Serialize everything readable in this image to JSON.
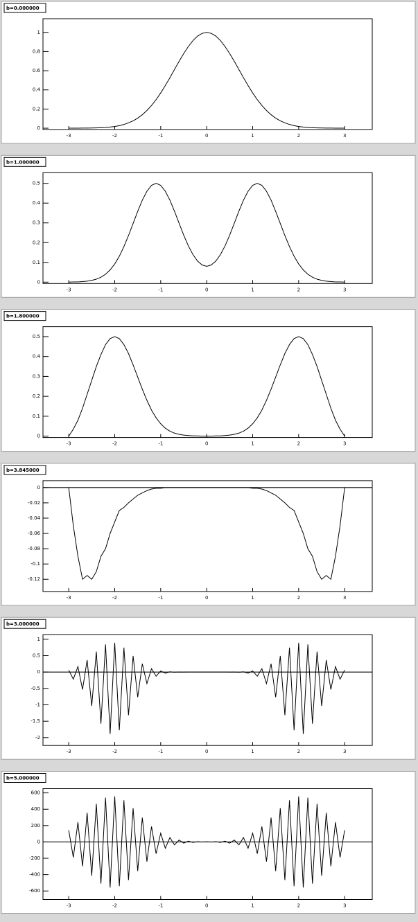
{
  "chart_data": [
    {
      "type": "line",
      "title": "b=0.000000",
      "color": "#000000",
      "zero_line": false,
      "xlim": [
        -3.56,
        3.6
      ],
      "xticks": [
        -3,
        -2,
        -1,
        0,
        1,
        2,
        3
      ],
      "ylim": [
        -0.014,
        1.143
      ],
      "yticks": [
        0,
        0.2,
        0.4,
        0.6,
        0.8,
        1
      ],
      "x": [
        -3,
        -2.9,
        -2.8,
        -2.7,
        -2.6,
        -2.5,
        -2.4,
        -2.3,
        -2.2,
        -2.1,
        -2,
        -1.9,
        -1.8,
        -1.7,
        -1.6,
        -1.5,
        -1.4,
        -1.3,
        -1.2,
        -1.1,
        -1,
        -0.9,
        -0.8,
        -0.7,
        -0.6,
        -0.5,
        -0.4,
        -0.3,
        -0.2,
        -0.1,
        0,
        0.1,
        0.2,
        0.3,
        0.4,
        0.5,
        0.6,
        0.7,
        0.8,
        0.9,
        1,
        1.1,
        1.2,
        1.3,
        1.4,
        1.5,
        1.6,
        1.7,
        1.8,
        1.9,
        2,
        2.1,
        2.2,
        2.3,
        2.4,
        2.5,
        2.6,
        2.7,
        2.8,
        2.9,
        3
      ],
      "values": [
        0,
        0,
        0,
        0.001,
        0.001,
        0.002,
        0.003,
        0.005,
        0.008,
        0.012,
        0.018,
        0.027,
        0.039,
        0.056,
        0.077,
        0.105,
        0.141,
        0.185,
        0.237,
        0.298,
        0.368,
        0.445,
        0.527,
        0.613,
        0.698,
        0.779,
        0.852,
        0.914,
        0.961,
        0.99,
        1,
        0.99,
        0.961,
        0.914,
        0.852,
        0.779,
        0.698,
        0.613,
        0.527,
        0.445,
        0.368,
        0.298,
        0.237,
        0.185,
        0.141,
        0.105,
        0.077,
        0.056,
        0.039,
        0.027,
        0.018,
        0.012,
        0.008,
        0.005,
        0.003,
        0.002,
        0.001,
        0.001,
        0,
        0,
        0
      ]
    },
    {
      "type": "line",
      "title": "b=1.000000",
      "color": "#000000",
      "zero_line": false,
      "xlim": [
        -3.56,
        3.6
      ],
      "xticks": [
        -3,
        -2,
        -1,
        0,
        1,
        2,
        3
      ],
      "ylim": [
        -0.007,
        0.554
      ],
      "yticks": [
        0,
        0.1,
        0.2,
        0.3,
        0.4,
        0.5
      ],
      "x": [
        -3,
        -2.9,
        -2.8,
        -2.7,
        -2.6,
        -2.5,
        -2.4,
        -2.3,
        -2.2,
        -2.1,
        -2,
        -1.9,
        -1.8,
        -1.7,
        -1.6,
        -1.5,
        -1.4,
        -1.3,
        -1.2,
        -1.1,
        -1,
        -0.9,
        -0.8,
        -0.7,
        -0.6,
        -0.5,
        -0.4,
        -0.3,
        -0.2,
        -0.1,
        0,
        0.1,
        0.2,
        0.3,
        0.4,
        0.5,
        0.6,
        0.7,
        0.8,
        0.9,
        1,
        1.1,
        1.2,
        1.3,
        1.4,
        1.5,
        1.6,
        1.7,
        1.8,
        1.9,
        2,
        2.1,
        2.2,
        2.3,
        2.4,
        2.5,
        2.6,
        2.7,
        2.8,
        2.9,
        3
      ],
      "values": [
        0,
        0.001,
        0.001,
        0.003,
        0.005,
        0.009,
        0.015,
        0.025,
        0.04,
        0.062,
        0.092,
        0.131,
        0.18,
        0.236,
        0.297,
        0.358,
        0.415,
        0.46,
        0.49,
        0.5,
        0.49,
        0.46,
        0.415,
        0.359,
        0.298,
        0.238,
        0.184,
        0.14,
        0.107,
        0.087,
        0.08,
        0.087,
        0.107,
        0.14,
        0.184,
        0.238,
        0.298,
        0.359,
        0.415,
        0.46,
        0.49,
        0.5,
        0.49,
        0.46,
        0.415,
        0.358,
        0.297,
        0.236,
        0.18,
        0.131,
        0.092,
        0.062,
        0.04,
        0.025,
        0.015,
        0.009,
        0.005,
        0.003,
        0.001,
        0.001,
        0
      ]
    },
    {
      "type": "line",
      "title": "b=1.800000",
      "color": "#000000",
      "zero_line": false,
      "xlim": [
        -3.56,
        3.6
      ],
      "xticks": [
        -3,
        -2,
        -1,
        0,
        1,
        2,
        3
      ],
      "ylim": [
        -0.007,
        0.55
      ],
      "yticks": [
        0,
        0.1,
        0.2,
        0.3,
        0.4,
        0.5
      ],
      "x": [
        -3,
        -2.9,
        -2.8,
        -2.7,
        -2.6,
        -2.5,
        -2.4,
        -2.3,
        -2.2,
        -2.1,
        -2,
        -1.9,
        -1.8,
        -1.7,
        -1.6,
        -1.5,
        -1.4,
        -1.3,
        -1.2,
        -1.1,
        -1,
        -0.9,
        -0.8,
        -0.7,
        -0.6,
        -0.5,
        -0.4,
        -0.3,
        -0.2,
        -0.1,
        0,
        0.1,
        0.2,
        0.3,
        0.4,
        0.5,
        0.6,
        0.7,
        0.8,
        0.9,
        1,
        1.1,
        1.2,
        1.3,
        1.4,
        1.5,
        1.6,
        1.7,
        1.8,
        1.9,
        2,
        2.1,
        2.2,
        2.3,
        2.4,
        2.5,
        2.6,
        2.7,
        2.8,
        2.9,
        3
      ],
      "values": [
        0,
        0.035,
        0.08,
        0.14,
        0.21,
        0.28,
        0.35,
        0.41,
        0.46,
        0.49,
        0.5,
        0.49,
        0.46,
        0.415,
        0.358,
        0.297,
        0.236,
        0.18,
        0.131,
        0.092,
        0.062,
        0.04,
        0.025,
        0.015,
        0.009,
        0.005,
        0.003,
        0.001,
        0.001,
        0,
        0,
        0,
        0.001,
        0.001,
        0.003,
        0.005,
        0.009,
        0.015,
        0.025,
        0.04,
        0.062,
        0.092,
        0.131,
        0.18,
        0.236,
        0.297,
        0.358,
        0.415,
        0.46,
        0.49,
        0.5,
        0.49,
        0.46,
        0.41,
        0.35,
        0.28,
        0.21,
        0.14,
        0.08,
        0.035,
        0
      ]
    },
    {
      "type": "line",
      "title": "b=3.845000",
      "color": "#000000",
      "zero_line": true,
      "xlim": [
        -3.56,
        3.6
      ],
      "xticks": [
        -3,
        -2,
        -1,
        0,
        1,
        2,
        3
      ],
      "ylim": [
        -0.136,
        0.009
      ],
      "yticks": [
        -0.12,
        -0.1,
        -0.08,
        -0.06,
        -0.04,
        -0.02,
        0
      ],
      "x": [
        -3,
        -2.9,
        -2.8,
        -2.7,
        -2.6,
        -2.5,
        -2.4,
        -2.3,
        -2.2,
        -2.1,
        -2,
        -1.9,
        -1.8,
        -1.7,
        -1.6,
        -1.5,
        -1.4,
        -1.3,
        -1.2,
        -1.1,
        -1,
        -0.9,
        -0.8,
        -0.7,
        -0.6,
        -0.5,
        -0.4,
        -0.3,
        -0.2,
        -0.1,
        0,
        0.1,
        0.2,
        0.3,
        0.4,
        0.5,
        0.6,
        0.7,
        0.8,
        0.9,
        1,
        1.1,
        1.2,
        1.3,
        1.4,
        1.5,
        1.6,
        1.7,
        1.8,
        1.9,
        2,
        2.1,
        2.2,
        2.3,
        2.4,
        2.5,
        2.6,
        2.7,
        2.8,
        2.9,
        3
      ],
      "values": [
        0,
        -0.05,
        -0.09,
        -0.12,
        -0.115,
        -0.12,
        -0.11,
        -0.09,
        -0.08,
        -0.06,
        -0.045,
        -0.03,
        -0.026,
        -0.02,
        -0.015,
        -0.01,
        -0.007,
        -0.004,
        -0.002,
        -0.001,
        -0.001,
        0,
        0,
        0,
        0,
        0,
        0,
        0,
        0,
        0,
        0,
        0,
        0,
        0,
        0,
        0,
        0,
        0,
        0,
        0,
        -0.001,
        -0.001,
        -0.002,
        -0.004,
        -0.007,
        -0.01,
        -0.015,
        -0.02,
        -0.026,
        -0.03,
        -0.045,
        -0.06,
        -0.08,
        -0.09,
        -0.11,
        -0.12,
        -0.115,
        -0.12,
        -0.09,
        -0.05,
        0
      ]
    },
    {
      "type": "line",
      "title": "b=3.000000",
      "color": "#000000",
      "zero_line": true,
      "xlim": [
        -3.56,
        3.6
      ],
      "xticks": [
        -3,
        -2,
        -1,
        0,
        1,
        2,
        3
      ],
      "ylim": [
        -2.24,
        1.14
      ],
      "yticks": [
        -2,
        -1.5,
        -1,
        -0.5,
        0,
        0.5,
        1
      ],
      "x": [
        -3,
        -2.9,
        -2.8,
        -2.7,
        -2.6,
        -2.5,
        -2.4,
        -2.3,
        -2.2,
        -2.1,
        -2,
        -1.9,
        -1.8,
        -1.7,
        -1.6,
        -1.5,
        -1.4,
        -1.3,
        -1.2,
        -1.1,
        -1,
        -0.9,
        -0.8,
        -0.7,
        -0.6,
        -0.5,
        -0.4,
        -0.3,
        -0.2,
        -0.1,
        0,
        0.1,
        0.2,
        0.3,
        0.4,
        0.5,
        0.6,
        0.7,
        0.8,
        0.9,
        1,
        1.1,
        1.2,
        1.3,
        1.4,
        1.5,
        1.6,
        1.7,
        1.8,
        1.9,
        2,
        2.1,
        2.2,
        2.3,
        2.4,
        2.5,
        2.6,
        2.7,
        2.8,
        2.9,
        3
      ],
      "values": [
        0.06,
        -0.217,
        0.167,
        -0.534,
        0.363,
        -1.034,
        0.623,
        -1.575,
        0.842,
        -1.887,
        0.894,
        -1.777,
        0.746,
        -1.315,
        0.49,
        -0.766,
        0.253,
        -0.352,
        0.103,
        -0.127,
        0.033,
        -0.036,
        0.008,
        -0.008,
        0.002,
        -0.002,
        0,
        0,
        0,
        0,
        0,
        0,
        0,
        0,
        0,
        -0.002,
        0.002,
        -0.008,
        0.008,
        -0.036,
        0.033,
        -0.127,
        0.103,
        -0.352,
        0.253,
        -0.766,
        0.49,
        -1.315,
        0.746,
        -1.777,
        0.894,
        -1.887,
        0.842,
        -1.575,
        0.623,
        -1.034,
        0.363,
        -0.534,
        0.167,
        -0.217,
        0.06
      ]
    },
    {
      "type": "line",
      "title": "b=5.000000",
      "color": "#000000",
      "zero_line": true,
      "xlim": [
        -3.56,
        3.6
      ],
      "xticks": [
        -3,
        -2,
        -1,
        0,
        1,
        2,
        3
      ],
      "ylim": [
        -704,
        652
      ],
      "yticks": [
        -600,
        -400,
        -200,
        0,
        200,
        400,
        600
      ],
      "x": [
        -3,
        -2.9,
        -2.8,
        -2.7,
        -2.6,
        -2.5,
        -2.4,
        -2.3,
        -2.2,
        -2.1,
        -2,
        -1.9,
        -1.8,
        -1.7,
        -1.6,
        -1.5,
        -1.4,
        -1.3,
        -1.2,
        -1.1,
        -1,
        -0.9,
        -0.8,
        -0.7,
        -0.6,
        -0.5,
        -0.4,
        -0.3,
        -0.2,
        -0.1,
        0,
        0.1,
        0.2,
        0.3,
        0.4,
        0.5,
        0.6,
        0.7,
        0.8,
        0.9,
        1,
        1.1,
        1.2,
        1.3,
        1.4,
        1.5,
        1.6,
        1.7,
        1.8,
        1.9,
        2,
        2.1,
        2.2,
        2.3,
        2.4,
        2.5,
        2.6,
        2.7,
        2.8,
        2.9,
        3
      ],
      "values": [
        144,
        -189,
        241,
        -297,
        356,
        -413,
        466,
        -510,
        542,
        -558,
        558,
        -542,
        510,
        -466,
        413,
        -356,
        297,
        -241,
        189,
        -144,
        107,
        -77,
        54,
        -36,
        24,
        -15,
        10,
        -6,
        3,
        -2,
        1,
        -2,
        3,
        -6,
        10,
        -15,
        24,
        -36,
        54,
        -77,
        107,
        -144,
        189,
        -241,
        297,
        -356,
        413,
        -466,
        510,
        -542,
        558,
        -558,
        542,
        -510,
        466,
        -413,
        356,
        -297,
        241,
        -189,
        144
      ]
    }
  ]
}
